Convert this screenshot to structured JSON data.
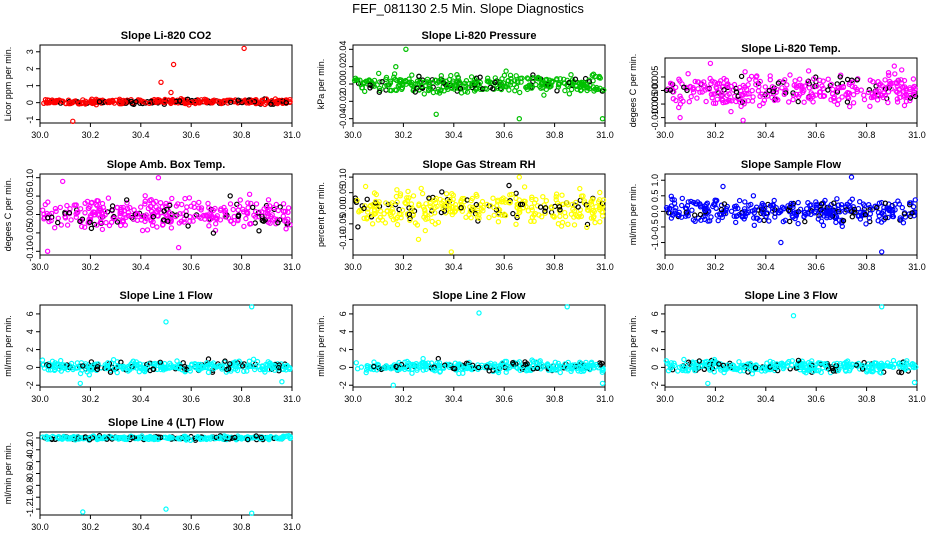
{
  "figure": {
    "title": "FEF_081130  2.5 Min. Slope Diagnostics"
  },
  "chart_data": [
    {
      "type": "scatter",
      "title": "Slope Li-820 CO2",
      "ylabel": "Licor ppm per min.",
      "xlabel": "",
      "xlim": [
        30.0,
        31.0
      ],
      "ylim": [
        -1.2,
        3.4
      ],
      "xticks": [
        "30.0",
        "30.2",
        "30.4",
        "30.6",
        "30.8",
        "31.0"
      ],
      "yticks": [
        "-1",
        "0",
        "1",
        "2",
        "3"
      ],
      "colors": {
        "main": "#ff0000",
        "alt": "#000000"
      },
      "noise_center": 0.05,
      "noise_spread": 0.12,
      "series": [
        {
          "name": "",
          "points": [
            [
              30.48,
              1.2
            ],
            [
              30.52,
              0.6
            ],
            [
              30.53,
              2.25
            ],
            [
              30.81,
              3.2
            ],
            [
              30.13,
              -1.1
            ]
          ]
        }
      ],
      "grid": false,
      "legend": "none"
    },
    {
      "type": "scatter",
      "title": "Slope Li-820 Pressure",
      "ylabel": "kPa per min.",
      "xlabel": "",
      "xlim": [
        30.0,
        31.0
      ],
      "ylim": [
        -0.045,
        0.045
      ],
      "xticks": [
        "30.0",
        "30.2",
        "30.4",
        "30.6",
        "30.8",
        "31.0"
      ],
      "yticks": [
        "-0.04",
        "-0.02",
        "0.00",
        "0.02",
        "0.04"
      ],
      "colors": {
        "main": "#00c000",
        "alt": "#000000"
      },
      "noise_center": 0.0,
      "noise_spread": 0.009,
      "series": [
        {
          "name": "",
          "points": [
            [
              30.21,
              0.04
            ],
            [
              30.33,
              -0.035
            ],
            [
              30.66,
              -0.04
            ],
            [
              30.99,
              -0.04
            ],
            [
              30.17,
              0.02
            ]
          ]
        }
      ],
      "grid": false,
      "legend": "none"
    },
    {
      "type": "scatter",
      "title": "Slope Li-820 Temp.",
      "ylabel": "degees C per min.",
      "xlabel": "",
      "xlim": [
        30.0,
        31.0
      ],
      "ylim": [
        -0.012,
        0.012
      ],
      "xticks": [
        "30.0",
        "30.2",
        "30.4",
        "30.6",
        "30.8",
        "31.0"
      ],
      "yticks": [
        "-0.010",
        "-0.005",
        "0.000",
        "0.005"
      ],
      "colors": {
        "main": "#ff00ff",
        "alt": "#000000"
      },
      "noise_center": 0.0,
      "noise_spread": 0.0045,
      "series": [
        {
          "name": "",
          "points": [
            [
              30.06,
              -0.01
            ],
            [
              30.18,
              0.01
            ],
            [
              30.31,
              -0.011
            ],
            [
              30.91,
              0.009
            ]
          ]
        }
      ],
      "grid": false,
      "legend": "none"
    },
    {
      "type": "scatter",
      "title": "Slope Amb. Box Temp.",
      "ylabel": "degees C per min.",
      "xlabel": "",
      "xlim": [
        30.0,
        31.0
      ],
      "ylim": [
        -0.11,
        0.11
      ],
      "xticks": [
        "30.0",
        "30.2",
        "30.4",
        "30.6",
        "30.8",
        "31.0"
      ],
      "yticks": [
        "-0.10",
        "-0.05",
        "0.00",
        "0.05",
        "0.10"
      ],
      "colors": {
        "main": "#ff00ff",
        "alt": "#000000"
      },
      "noise_center": 0.0,
      "noise_spread": 0.035,
      "series": [
        {
          "name": "",
          "points": [
            [
              30.47,
              0.1
            ],
            [
              30.09,
              0.09
            ],
            [
              30.55,
              -0.09
            ],
            [
              30.03,
              -0.1
            ]
          ]
        }
      ],
      "grid": false,
      "legend": "none"
    },
    {
      "type": "scatter",
      "title": "Slope Gas Stream RH",
      "ylabel": "percent per min.",
      "xlabel": "",
      "xlim": [
        30.0,
        31.0
      ],
      "ylim": [
        -0.15,
        0.11
      ],
      "xticks": [
        "30.0",
        "30.2",
        "30.4",
        "30.6",
        "30.8",
        "31.0"
      ],
      "yticks": [
        "-0.10",
        "-0.05",
        "0.00",
        "0.05",
        "0.10"
      ],
      "colors": {
        "main": "#ffff00",
        "alt": "#000000"
      },
      "noise_center": 0.0,
      "noise_spread": 0.04,
      "series": [
        {
          "name": "",
          "points": [
            [
              30.66,
              0.1
            ],
            [
              30.39,
              -0.14
            ],
            [
              30.05,
              0.07
            ],
            [
              30.26,
              -0.1
            ]
          ]
        }
      ],
      "grid": false,
      "legend": "none"
    },
    {
      "type": "scatter",
      "title": "Slope Sample Flow",
      "ylabel": "ml/min per min.",
      "xlabel": "",
      "xlim": [
        30.0,
        31.0
      ],
      "ylim": [
        -1.4,
        1.2
      ],
      "xticks": [
        "30.0",
        "30.2",
        "30.4",
        "30.6",
        "30.8",
        "31.0"
      ],
      "yticks": [
        "-1.0",
        "-0.5",
        "0.0",
        "0.5",
        "1.0"
      ],
      "colors": {
        "main": "#0000ff",
        "alt": "#000000"
      },
      "noise_center": 0.0,
      "noise_spread": 0.3,
      "series": [
        {
          "name": "",
          "points": [
            [
              30.74,
              1.1
            ],
            [
              30.86,
              -1.3
            ],
            [
              30.23,
              0.8
            ],
            [
              30.46,
              -1.0
            ]
          ]
        }
      ],
      "grid": false,
      "legend": "none"
    },
    {
      "type": "scatter",
      "title": "Slope Line 1 Flow",
      "ylabel": "ml/min per min.",
      "xlabel": "",
      "xlim": [
        30.0,
        31.0
      ],
      "ylim": [
        -2.2,
        7.0
      ],
      "xticks": [
        "30.0",
        "30.2",
        "30.4",
        "30.6",
        "30.8",
        "31.0"
      ],
      "yticks": [
        "-2",
        "0",
        "2",
        "4",
        "6"
      ],
      "colors": {
        "main": "#00ffff",
        "alt": "#000000"
      },
      "noise_center": 0.1,
      "noise_spread": 0.5,
      "series": [
        {
          "name": "",
          "points": [
            [
              30.84,
              6.8
            ],
            [
              30.5,
              5.1
            ],
            [
              30.16,
              -1.8
            ],
            [
              30.96,
              -1.6
            ]
          ]
        }
      ],
      "grid": false,
      "legend": "none"
    },
    {
      "type": "scatter",
      "title": "Slope Line 2 Flow",
      "ylabel": "ml/min per min.",
      "xlabel": "",
      "xlim": [
        30.0,
        31.0
      ],
      "ylim": [
        -2.2,
        7.0
      ],
      "xticks": [
        "30.0",
        "30.2",
        "30.4",
        "30.6",
        "30.8",
        "31.0"
      ],
      "yticks": [
        "-2",
        "0",
        "2",
        "4",
        "6"
      ],
      "colors": {
        "main": "#00ffff",
        "alt": "#000000"
      },
      "noise_center": 0.1,
      "noise_spread": 0.5,
      "series": [
        {
          "name": "",
          "points": [
            [
              30.85,
              6.8
            ],
            [
              30.5,
              6.1
            ],
            [
              30.16,
              -2.0
            ],
            [
              30.99,
              -1.8
            ]
          ]
        }
      ],
      "grid": false,
      "legend": "none"
    },
    {
      "type": "scatter",
      "title": "Slope Line 3 Flow",
      "ylabel": "ml/min per min.",
      "xlabel": "",
      "xlim": [
        30.0,
        31.0
      ],
      "ylim": [
        -2.2,
        7.0
      ],
      "xticks": [
        "30.0",
        "30.2",
        "30.4",
        "30.6",
        "30.8",
        "31.0"
      ],
      "yticks": [
        "-2",
        "0",
        "2",
        "4",
        "6"
      ],
      "colors": {
        "main": "#00ffff",
        "alt": "#000000"
      },
      "noise_center": 0.1,
      "noise_spread": 0.5,
      "series": [
        {
          "name": "",
          "points": [
            [
              30.86,
              6.8
            ],
            [
              30.51,
              5.8
            ],
            [
              30.17,
              -1.8
            ],
            [
              30.99,
              -1.7
            ]
          ]
        }
      ],
      "grid": false,
      "legend": "none"
    },
    {
      "type": "scatter",
      "title": "Slope Line 4 (LT) Flow",
      "ylabel": "ml/min per min.",
      "xlabel": "",
      "xlim": [
        30.0,
        31.0
      ],
      "ylim": [
        -1.3,
        0.1
      ],
      "xticks": [
        "30.0",
        "30.2",
        "30.4",
        "30.6",
        "30.8",
        "31.0"
      ],
      "yticks": [
        "-1.2",
        "-1.0",
        "-0.8",
        "-0.6",
        "-0.4",
        "-0.2",
        "0.0"
      ],
      "colors": {
        "main": "#00ffff",
        "alt": "#000000"
      },
      "noise_center": 0.0,
      "noise_spread": 0.025,
      "series": [
        {
          "name": "",
          "points": [
            [
              30.17,
              -1.25
            ],
            [
              30.5,
              -1.2
            ],
            [
              30.84,
              -1.27
            ]
          ]
        }
      ],
      "grid": false,
      "legend": "none"
    }
  ]
}
